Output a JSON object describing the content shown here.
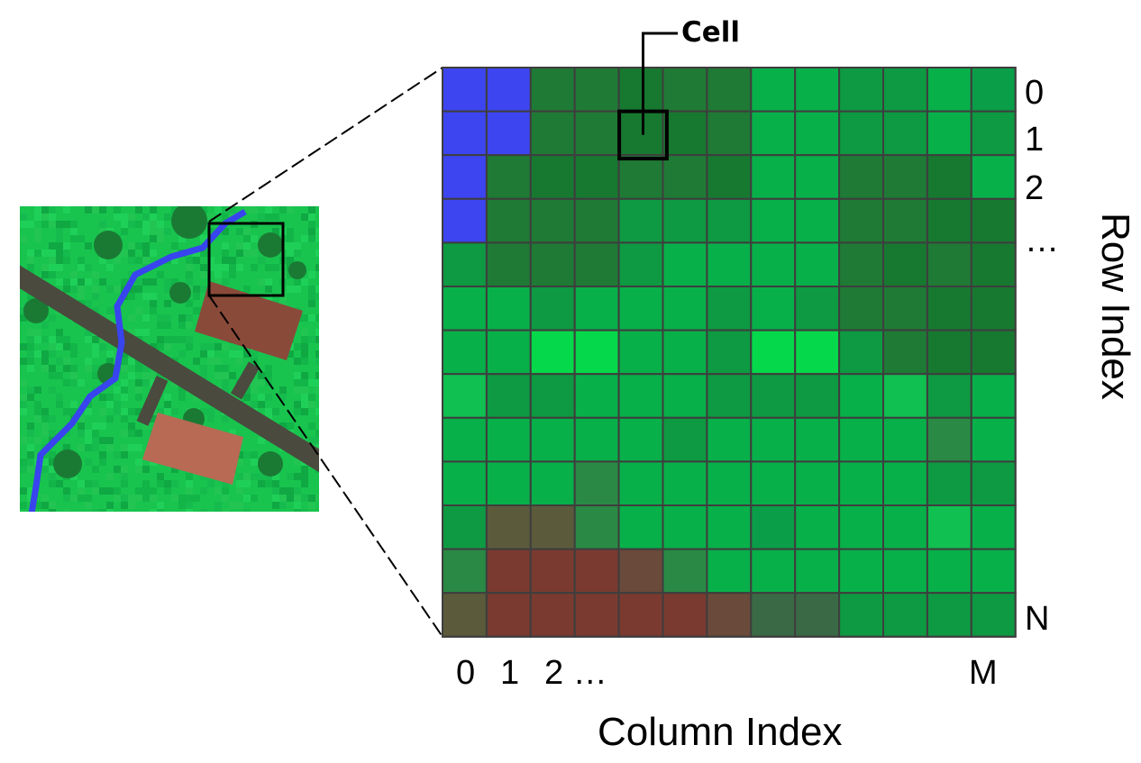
{
  "labels": {
    "cell": "Cell",
    "row_index": "Row Index",
    "column_index": "Column Index"
  },
  "row_labels": [
    "0",
    "1",
    "2",
    "…",
    "N"
  ],
  "col_labels": [
    "0",
    "1",
    "2 …",
    "M"
  ],
  "palette": {
    "A": "#3d45f0",
    "B": "#1f7a35",
    "C": "#177930",
    "D": "#0e9a42",
    "E": "#08b04a",
    "F": "#10c050",
    "G": "#05d84a",
    "H": "#2a8a45",
    "I": "#5b5b3c",
    "J": "#7a3a30",
    "K": "#6a4a3a",
    "L": "#3a6a45",
    "M": "#0a9e48",
    "grid": "#3e3e3e"
  },
  "grid": [
    "AABBCBBEEDDEM",
    "AABBCCBEEDDED",
    "ABCCBBCEEBBCE",
    "ABBBDDDEEBBCC",
    "DBBBDEEEEBCBC",
    "EEDEEEDEDBBCC",
    "EEGGEEDGGDBCC",
    "FDDEEEDDDEFDE",
    "EEEEEDEEEEEHE",
    "EEEHEEEEEEEDD",
    "DIIHEEEMEEEFE",
    "HJJJKHEEEEEEE",
    "IJJJJJKLLDDDD"
  ],
  "minimap": {
    "ground": "#18c44e",
    "vegetation": "#1a7a34",
    "road": "#4a4a3e",
    "river": "#3844ee",
    "building": "#8a4a3a",
    "roof": "#b86a55"
  }
}
